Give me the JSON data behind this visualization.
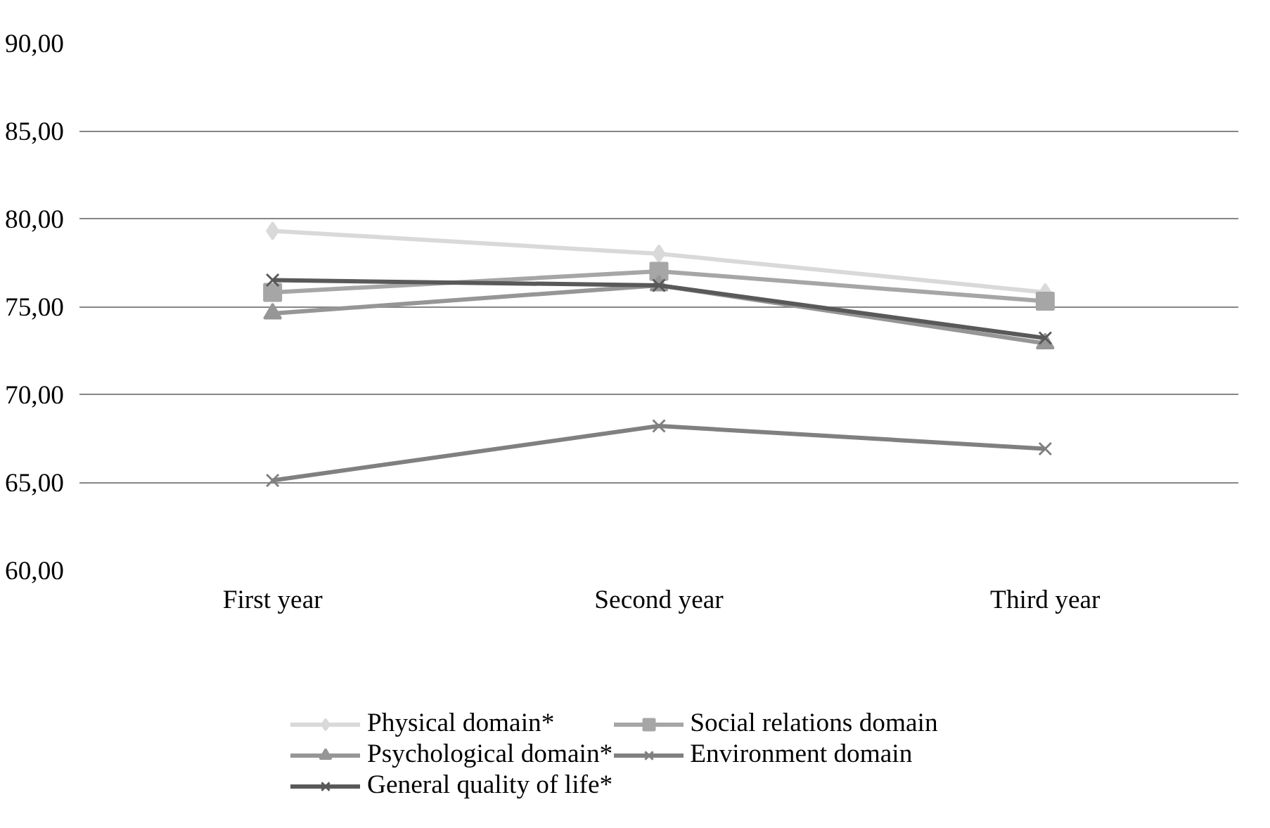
{
  "chart_data": {
    "type": "line",
    "categories": [
      "First year",
      "Second year",
      "Third year"
    ],
    "ylim": [
      60,
      90
    ],
    "yticks": [
      {
        "value": 60,
        "label": "60,00"
      },
      {
        "value": 65,
        "label": "65,00"
      },
      {
        "value": 70,
        "label": "70,00"
      },
      {
        "value": 75,
        "label": "75,00"
      },
      {
        "value": 80,
        "label": "80,00"
      },
      {
        "value": 85,
        "label": "85,00"
      },
      {
        "value": 90,
        "label": "90,00"
      }
    ],
    "grid": "y",
    "legend": "bottom",
    "series": [
      {
        "name": "Physical domain*",
        "color": "#d9d9d9",
        "marker": "diamond",
        "values": [
          79.3,
          78.0,
          75.8
        ]
      },
      {
        "name": "Social relations domain",
        "color": "#a6a6a6",
        "marker": "square",
        "values": [
          75.8,
          77.0,
          75.3
        ]
      },
      {
        "name": "Psychological domain*",
        "color": "#969696",
        "marker": "triangle",
        "values": [
          74.6,
          76.2,
          72.9
        ]
      },
      {
        "name": "Environment domain",
        "color": "#808080",
        "marker": "cross",
        "values": [
          65.1,
          68.2,
          66.9
        ]
      },
      {
        "name": "General quality of life*",
        "color": "#595959",
        "marker": "cross",
        "values": [
          76.5,
          76.2,
          73.2
        ]
      }
    ]
  }
}
